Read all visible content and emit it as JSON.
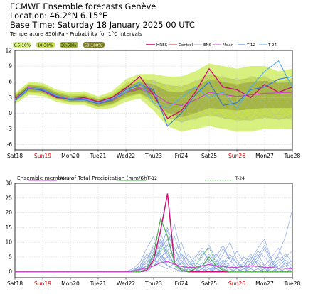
{
  "header": {
    "line1": "ECMWF Ensemble forecasts Genève",
    "line2": "Location:  46.2°N 6.15°E",
    "line3": "Base Time: Saturday 18 January 2025 00 UTC"
  },
  "colors": {
    "hres": "#cc1177",
    "control": "#cc3344",
    "ens": "#b0b0c0",
    "mean": "#cc44cc",
    "t12": "#3377dd",
    "t24": "#55aaee",
    "band1": "#d8f080",
    "band2": "#c4de50",
    "band3": "#a0b040",
    "band4": "#808028",
    "precip_members": "#8aa8e8",
    "precip_t12": "#44aa44",
    "precip_t24": "#66cc66"
  },
  "chart_data": [
    {
      "type": "line",
      "title": "Temperature 850hPa - Probability for 1°C intervals",
      "probability_legend": [
        "0.5-10%",
        "10-30%",
        "30-50%",
        "50-100%"
      ],
      "series_legend": [
        "HRES",
        "Control",
        "ENS",
        "Mean",
        "T-12",
        "T-24"
      ],
      "x_labels": [
        "Sat18",
        "Sun19",
        "Mon20",
        "Tue21",
        "Wed22",
        "Thu23",
        "Fri24",
        "Sat25",
        "Sun26",
        "Mon27",
        "Tue28"
      ],
      "sunday_labels": [
        "Sun19",
        "Sun26"
      ],
      "ylim": [
        -7,
        12
      ],
      "yticks": [
        -6,
        -3,
        0,
        3,
        6,
        9,
        12
      ],
      "grid": true,
      "x_days": [
        0,
        0.5,
        1,
        1.5,
        2,
        2.5,
        3,
        3.5,
        4,
        4.5,
        5,
        5.5,
        6,
        6.5,
        7,
        7.5,
        8,
        8.5,
        9,
        9.5,
        10
      ],
      "mean": [
        2.8,
        4.8,
        4.5,
        3.3,
        2.7,
        2.8,
        2.0,
        2.5,
        4.0,
        4.8,
        3.8,
        2.0,
        1.5,
        2.5,
        4.0,
        3.6,
        3.2,
        3.5,
        3.8,
        3.9,
        4.0
      ],
      "band_lo": [
        1.8,
        3.5,
        3.3,
        2.2,
        1.6,
        1.6,
        0.7,
        1.0,
        2.2,
        2.8,
        0.5,
        -2.5,
        -3.5,
        -3.0,
        -2.5,
        -3.0,
        -3.5,
        -3.5,
        -3.0,
        -3.0,
        -3.0
      ],
      "band_hi": [
        3.8,
        6.0,
        5.8,
        4.5,
        4.0,
        4.2,
        3.2,
        4.2,
        6.5,
        7.5,
        7.5,
        7.0,
        7.0,
        8.0,
        9.5,
        9.0,
        8.5,
        9.0,
        9.0,
        8.0,
        8.5
      ],
      "core_lo": [
        2.3,
        4.2,
        3.9,
        2.8,
        2.2,
        2.2,
        1.3,
        1.8,
        3.2,
        3.8,
        2.5,
        0.0,
        -0.8,
        0.0,
        1.0,
        0.8,
        0.5,
        0.8,
        1.0,
        1.0,
        1.0
      ],
      "core_hi": [
        3.3,
        5.4,
        5.1,
        3.9,
        3.2,
        3.4,
        2.7,
        3.2,
        5.2,
        6.0,
        5.5,
        4.2,
        4.0,
        5.0,
        6.5,
        6.0,
        5.5,
        6.0,
        6.2,
        5.8,
        6.0
      ],
      "series": [
        {
          "name": "HRES",
          "values": [
            2.5,
            5.0,
            4.3,
            3.0,
            2.7,
            3.0,
            2.2,
            3.0,
            4.8,
            7.0,
            3.5,
            -1.0,
            0.5,
            4.0,
            8.5,
            5.0,
            4.5,
            3.0,
            5.5,
            4.0,
            5.0
          ]
        },
        {
          "name": "T-12",
          "values": [
            2.3,
            4.7,
            4.4,
            3.2,
            2.5,
            2.6,
            1.8,
            2.6,
            4.5,
            5.5,
            4.5,
            -2.5,
            0.0,
            3.5,
            6.0,
            1.5,
            2.0,
            4.5,
            5.0,
            6.5,
            7.0
          ]
        },
        {
          "name": "T-24",
          "values": [
            2.4,
            4.9,
            4.6,
            3.4,
            2.8,
            2.7,
            2.0,
            2.8,
            4.0,
            6.0,
            2.0,
            1.0,
            3.0,
            5.0,
            3.0,
            4.0,
            1.0,
            5.0,
            8.0,
            10.0,
            5.0
          ]
        }
      ]
    },
    {
      "type": "line",
      "title": "Ensemble members of Total Precipitation (mm/6h)",
      "series_legend": [
        "Mean",
        "T-12",
        "T-24"
      ],
      "x_labels": [
        "Sat18",
        "Sun19",
        "Mon20",
        "Tue21",
        "Wed22",
        "Thu23",
        "Fri24",
        "Sat25",
        "Sun26",
        "Mon27",
        "Tue28"
      ],
      "sunday_labels": [
        "Sun19",
        "Sun26"
      ],
      "ylim": [
        -2,
        30
      ],
      "yticks": [
        0,
        5,
        10,
        15,
        20,
        25,
        30
      ],
      "grid": true,
      "x_days": [
        0,
        0.5,
        1,
        1.5,
        2,
        2.5,
        3,
        3.5,
        4,
        4.25,
        4.5,
        4.75,
        5,
        5.25,
        5.5,
        5.75,
        6,
        6.25,
        6.5,
        6.75,
        7,
        7.25,
        7.5,
        7.75,
        8,
        8.25,
        8.5,
        8.75,
        9,
        9.25,
        9.5,
        9.75,
        10
      ],
      "series": [
        {
          "name": "HRES",
          "values": [
            0,
            0,
            0,
            0,
            0,
            0,
            0,
            0,
            0,
            0,
            0,
            0.5,
            4.0,
            14.0,
            26.5,
            3.0,
            0.5,
            0,
            0,
            0,
            0,
            0,
            0,
            0,
            0,
            0,
            0,
            0,
            0,
            0,
            0,
            0,
            0
          ]
        },
        {
          "name": "T-12",
          "values": [
            0,
            0,
            0,
            0,
            0,
            0,
            0,
            0,
            0,
            0,
            0,
            1.0,
            6.0,
            18.0,
            12.0,
            3.0,
            0.5,
            0,
            1.0,
            2.0,
            5.0,
            2.0,
            0.5,
            0,
            0,
            0,
            0,
            0,
            0,
            0,
            0,
            0,
            0
          ]
        },
        {
          "name": "T-24",
          "values": [
            0,
            0,
            0,
            0,
            0,
            0,
            0,
            0,
            0,
            0,
            0,
            1.0,
            3.0,
            8.0,
            7.0,
            2.0,
            1.0,
            0.5,
            2.0,
            6.0,
            8.0,
            3.0,
            1.0,
            0,
            0,
            0,
            0,
            0,
            0,
            0,
            0,
            0,
            0
          ]
        },
        {
          "name": "Mean",
          "values": [
            0,
            0,
            0,
            0,
            0,
            0,
            0,
            0,
            0,
            0.2,
            0.8,
            1.2,
            2.0,
            3.0,
            3.5,
            2.5,
            1.8,
            1.5,
            1.5,
            2.0,
            2.5,
            2.0,
            1.8,
            1.5,
            1.5,
            1.8,
            2.0,
            1.8,
            1.5,
            1.5,
            1.2,
            1.2,
            1.0
          ]
        }
      ],
      "members": [
        [
          0,
          0,
          0,
          0,
          0,
          0,
          0,
          0,
          0,
          0,
          0.5,
          2,
          6,
          10,
          5,
          2,
          1,
          0,
          0,
          1,
          3,
          2,
          1,
          0,
          0,
          1,
          3,
          6,
          2,
          0,
          0,
          1,
          0
        ],
        [
          0,
          0,
          0,
          0,
          0,
          0,
          0,
          0,
          0,
          1,
          3,
          8,
          12,
          6,
          2,
          1,
          0,
          0,
          2,
          5,
          9,
          4,
          1,
          0,
          0,
          0,
          2,
          4,
          8,
          3,
          1,
          0,
          0
        ],
        [
          0,
          0,
          0,
          0,
          0,
          0,
          0,
          0,
          0,
          0,
          0,
          1,
          3,
          7,
          15,
          8,
          3,
          1,
          0,
          0,
          1,
          2,
          6,
          10,
          4,
          1,
          0,
          0,
          1,
          3,
          5,
          2,
          0
        ],
        [
          0,
          0,
          0,
          0,
          0,
          0,
          0,
          0,
          0,
          0,
          1,
          4,
          9,
          13,
          7,
          2,
          0,
          1,
          3,
          2,
          1,
          0,
          2,
          5,
          3,
          1,
          0,
          0,
          0,
          2,
          6,
          12,
          21
        ],
        [
          0,
          0,
          0,
          0,
          0,
          0,
          0,
          0,
          0,
          0,
          0,
          0.5,
          2,
          4,
          9,
          16,
          6,
          2,
          1,
          0,
          0,
          3,
          8,
          4,
          1,
          0,
          1,
          4,
          2,
          0,
          0,
          0,
          0
        ],
        [
          0,
          0,
          0,
          0,
          0,
          0,
          0,
          0,
          0,
          0.5,
          2,
          5,
          3,
          8,
          11,
          4,
          1,
          0,
          0,
          2,
          4,
          6,
          3,
          1,
          0,
          2,
          5,
          3,
          1,
          0,
          1,
          3,
          1
        ],
        [
          0,
          0,
          0,
          0,
          0,
          0,
          0,
          0,
          0,
          0,
          0,
          1,
          5,
          6,
          3,
          7,
          10,
          3,
          1,
          0,
          0,
          0,
          1,
          3,
          7,
          3,
          1,
          0,
          0,
          0,
          2,
          4,
          2
        ],
        [
          0,
          0,
          0,
          0,
          0,
          0,
          0,
          0,
          0,
          0,
          1,
          3,
          7,
          4,
          2,
          1,
          3,
          6,
          2,
          1,
          0,
          1,
          2,
          1,
          0,
          1,
          2,
          5,
          9,
          4,
          1,
          0,
          0
        ],
        [
          0,
          0,
          0,
          0,
          0,
          0,
          0,
          0,
          0,
          0,
          0,
          2,
          4,
          11,
          6,
          3,
          1,
          2,
          5,
          8,
          3,
          1,
          0,
          0,
          1,
          2,
          1,
          0,
          1,
          2,
          4,
          6,
          3
        ],
        [
          0,
          0,
          0,
          0,
          0,
          0,
          0,
          0,
          0,
          0.5,
          1,
          3,
          5,
          7,
          9,
          5,
          2,
          1,
          0,
          0,
          2,
          4,
          2,
          0,
          0,
          0,
          3,
          7,
          5,
          2,
          0,
          0,
          0
        ],
        [
          0,
          0,
          0,
          0,
          0,
          0,
          0,
          0,
          0,
          0,
          0,
          0,
          2,
          5,
          7,
          12,
          5,
          2,
          0,
          1,
          3,
          5,
          9,
          4,
          1,
          0,
          0,
          1,
          2,
          5,
          8,
          3,
          1
        ],
        [
          0,
          0,
          0,
          0,
          0,
          0,
          0,
          0,
          0,
          0,
          2,
          6,
          4,
          2,
          1,
          3,
          6,
          4,
          1,
          0,
          0,
          2,
          4,
          2,
          1,
          3,
          6,
          2,
          0,
          0,
          1,
          2,
          4
        ],
        [
          0,
          0,
          0,
          0,
          0,
          0,
          0,
          0,
          0,
          0,
          0,
          1,
          3,
          9,
          14,
          6,
          2,
          0,
          0,
          3,
          6,
          3,
          1,
          0,
          0,
          2,
          4,
          8,
          11,
          4,
          1,
          0,
          0
        ],
        [
          0,
          0,
          0,
          0,
          0,
          0,
          0,
          0,
          0,
          0,
          1,
          2,
          4,
          3,
          5,
          8,
          4,
          1,
          0,
          0,
          1,
          1,
          3,
          6,
          3,
          1,
          0,
          0,
          0,
          1,
          3,
          5,
          7
        ],
        [
          0,
          0,
          0,
          0,
          0,
          0,
          0,
          0,
          0,
          0.5,
          1.5,
          4,
          8,
          5,
          2,
          1,
          0,
          1,
          4,
          7,
          4,
          1,
          0,
          0,
          2,
          5,
          3,
          1,
          0,
          2,
          1,
          0,
          0
        ]
      ]
    }
  ]
}
